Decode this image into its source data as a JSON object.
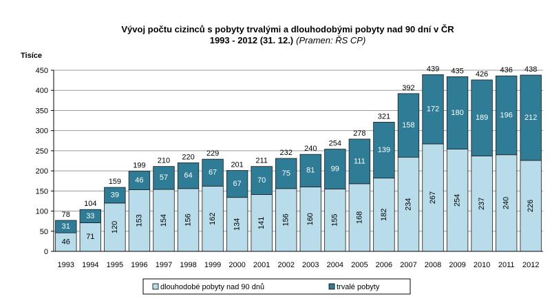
{
  "chart_data": {
    "type": "bar",
    "stacked": true,
    "title_line1": "Vývoj počtu cizinců s pobyty  trvalými a dlouhodobými  pobyty  nad 90 dní  v ČR",
    "title_line2_bold": "1993 - 2012 (31. 12.)",
    "title_line2_italic": "(Pramen: ŘS CP)",
    "ylabel": "Tisíce",
    "xlabel": "",
    "ylim": [
      0,
      450
    ],
    "yticks": [
      "0",
      "50",
      "100",
      "150",
      "200",
      "250",
      "300",
      "350",
      "400",
      "450"
    ],
    "grid": true,
    "legend_position": "bottom",
    "categories": [
      "1993",
      "1994",
      "1995",
      "1996",
      "1997",
      "1998",
      "1999",
      "2000",
      "2001",
      "2002",
      "2003",
      "2004",
      "2005",
      "2006",
      "2007",
      "2008",
      "2009",
      "2010",
      "2011",
      "2012"
    ],
    "series": [
      {
        "name": "dlouhodobé pobyty nad 90 dnů",
        "color": "#b8dcea",
        "label_color": "#000000",
        "values": [
          46,
          71,
          120,
          153,
          154,
          156,
          162,
          134,
          141,
          156,
          160,
          155,
          168,
          182,
          234,
          267,
          254,
          237,
          240,
          226
        ]
      },
      {
        "name": "trvalé pobyty",
        "color": "#2e7c96",
        "label_color": "#ffffff",
        "values": [
          31,
          33,
          39,
          46,
          57,
          64,
          67,
          67,
          70,
          75,
          81,
          99,
          111,
          139,
          158,
          172,
          180,
          189,
          196,
          212
        ]
      }
    ],
    "totals": [
      78,
      104,
      159,
      199,
      210,
      220,
      229,
      201,
      211,
      232,
      240,
      254,
      278,
      321,
      392,
      439,
      435,
      426,
      436,
      438
    ]
  }
}
